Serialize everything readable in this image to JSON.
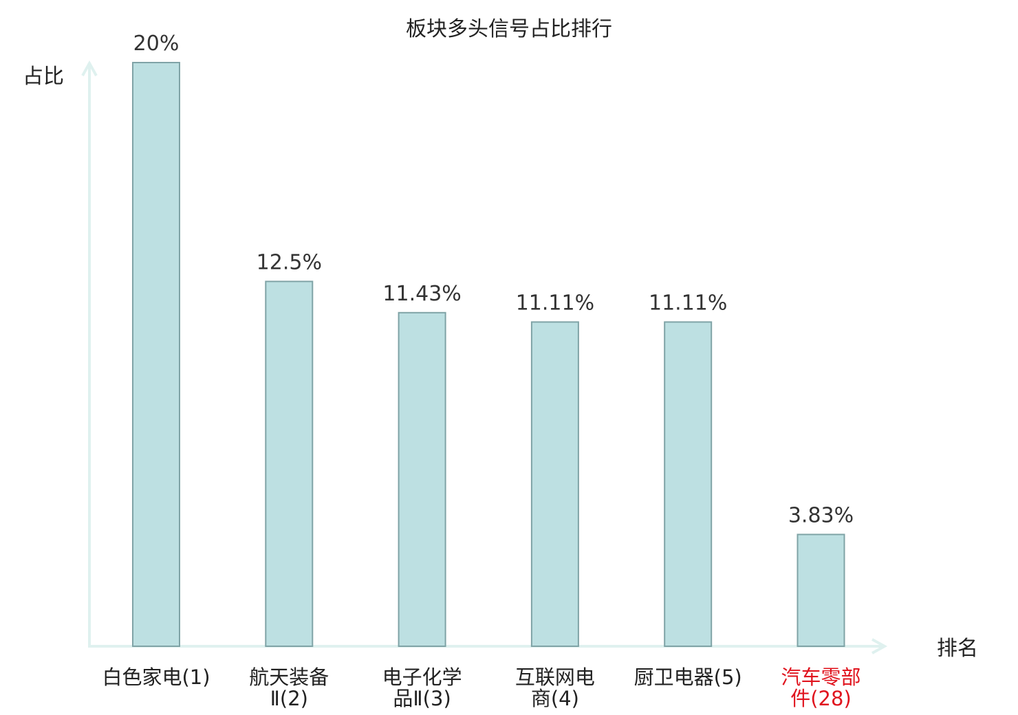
{
  "chart_data": {
    "type": "bar",
    "title": "板块多头信号占比排行",
    "ylabel": "占比",
    "xlabel": "排名",
    "ylim": [
      0,
      20
    ],
    "grid": false,
    "categories": [
      [
        "白色家电(1)"
      ],
      [
        "航天装备",
        "Ⅱ(2)"
      ],
      [
        "电子化学",
        "品Ⅱ(3)"
      ],
      [
        "互联网电",
        "商(4)"
      ],
      [
        "厨卫电器(5)"
      ],
      [
        "汽车零部",
        "件(28)"
      ]
    ],
    "values": [
      20,
      12.5,
      11.43,
      11.11,
      11.11,
      3.83
    ],
    "value_labels": [
      "20%",
      "12.5%",
      "11.43%",
      "11.11%",
      "11.11%",
      "3.83%"
    ],
    "highlight_index": 5
  },
  "colors": {
    "bar_fill": "#bde0e2",
    "bar_stroke": "#7fa3a6",
    "axis": "#dff1ef",
    "text": "#222222",
    "value_text": "#333333",
    "highlight_text": "#e0141e"
  }
}
